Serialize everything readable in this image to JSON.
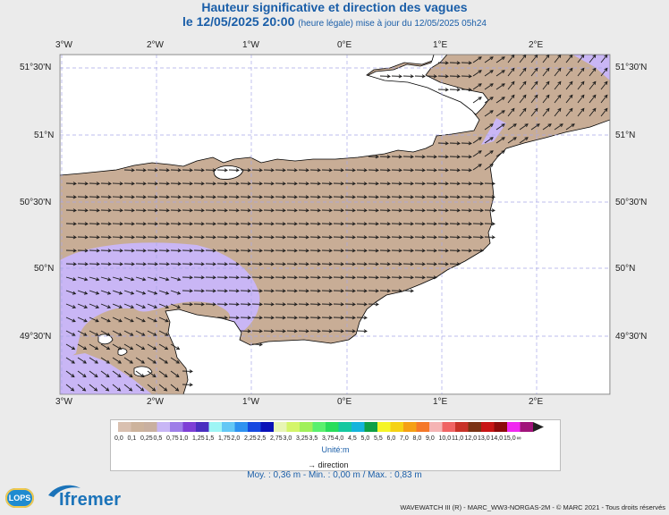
{
  "title": "Hauteur significative et direction des vagues",
  "subtitle_main": "le 12/05/2025 20:00",
  "subtitle_detail": "(heure légale) mise à jour du 12/05/2025 05h24",
  "axes": {
    "lon_labels": [
      "3°W",
      "2°W",
      "1°W",
      "0°E",
      "1°E",
      "2°E"
    ],
    "lat_labels": [
      "51°30'N",
      "51°N",
      "50°30'N",
      "50°N",
      "49°30'N"
    ]
  },
  "legend": {
    "values": [
      "0,0",
      "0,1",
      "0,25",
      "0,5",
      "0,75",
      "1,0",
      "1,25",
      "1,5",
      "1,75",
      "2,0",
      "2,25",
      "2,5",
      "2,75",
      "3,0",
      "3,25",
      "3,5",
      "3,75",
      "4,0",
      "4,5",
      "5,0",
      "5,5",
      "6,0",
      "7,0",
      "8,0",
      "9,0",
      "10,0",
      "11,0",
      "12,0",
      "13,0",
      "14,0",
      "15,0",
      "∞"
    ],
    "colors": [
      "#d9c0b0",
      "#cdb39c",
      "#c9b0a0",
      "#c8b6f5",
      "#9e7ee8",
      "#7e3fd6",
      "#4a2fc0",
      "#9ef5f5",
      "#64c8f5",
      "#2f92f0",
      "#1548e0",
      "#0b12b8",
      "#e8f5b4",
      "#d4f569",
      "#a0f05a",
      "#5af06e",
      "#28dd5a",
      "#14c8a0",
      "#14b4dc",
      "#0fa046",
      "#f5f528",
      "#f5d214",
      "#f5a014",
      "#f57828",
      "#f5b4b4",
      "#f06464",
      "#c83228",
      "#7a3214",
      "#c81414",
      "#8c0a0a",
      "#f028f0",
      "#a0147a"
    ],
    "unit": "Unité:m",
    "direction_label": "direction"
  },
  "stats": "Moy. : 0,36 m  -  Min. : 0,00 m / Max. : 0,83 m",
  "footer": "WAVEWATCH III (R) - MARC_WW3-NORGAS-2M - © MARC 2021 - Tous droits réservés",
  "logos": {
    "lops": "LOPS",
    "ifremer": "Ifremer"
  },
  "colors": {
    "sea_low": "#c8ad96",
    "sea_mid": "#c9b6f5",
    "land": "#ffffff",
    "title": "#1a5ea8",
    "grid": "#a8a8e8"
  }
}
